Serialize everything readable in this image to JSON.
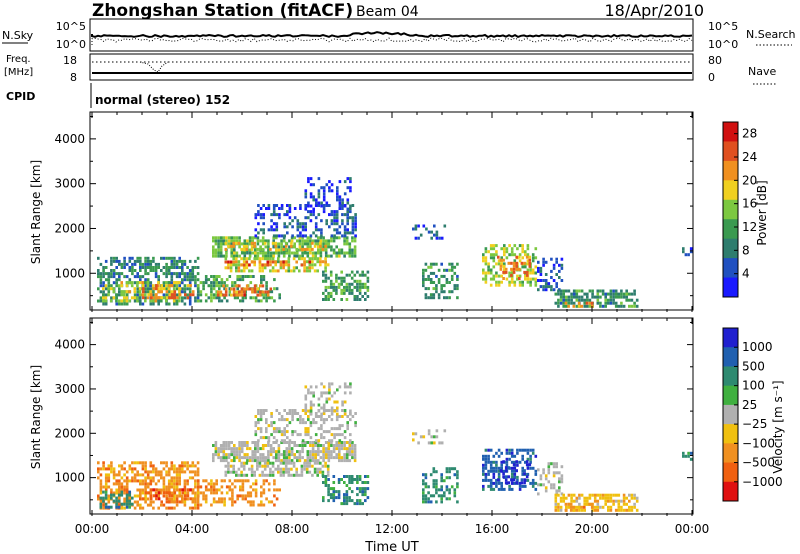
{
  "header": {
    "station": "Zhongshan Station (fitACF)",
    "beam": "Beam 04",
    "date": "18/Apr/2010"
  },
  "summary_panels": {
    "nsky": {
      "label": "N.Sky",
      "ticks_left": [
        "10^5",
        "10^0"
      ],
      "ticks_right": [
        "10^5",
        "10^0"
      ],
      "right_label": "N.Search"
    },
    "freq": {
      "label_line1": "Freq.",
      "label_line2": "[MHz]",
      "ticks_left": [
        "18",
        "8"
      ],
      "ticks_right": [
        "80",
        "0"
      ],
      "right_label": "Nave"
    },
    "cpid": {
      "label": "CPID",
      "value": "normal (stereo) 152"
    }
  },
  "chart_data": [
    {
      "type": "heatmap",
      "panel": "power",
      "ylabel": "Slant Range [km]",
      "yticks": [
        1000,
        2000,
        3000,
        4000
      ],
      "ylim": [
        180,
        4600
      ],
      "xlim_hours": [
        0,
        24
      ],
      "colorbar": {
        "label": "Power [dB]",
        "ticks": [
          "4",
          "8",
          "12",
          "16",
          "20",
          "24",
          "28"
        ],
        "range": [
          0,
          30
        ],
        "colors": [
          "#1a1aff",
          "#2050c0",
          "#2e7d6e",
          "#3a9a50",
          "#7cc840",
          "#f0d020",
          "#f09020",
          "#e05020",
          "#d01010"
        ]
      },
      "regions": [
        {
          "t0": 0.2,
          "t1": 4.2,
          "r0": 280,
          "r1": 1350,
          "p": 9,
          "density": 0.55
        },
        {
          "t0": 0.4,
          "t1": 3.5,
          "r0": 350,
          "r1": 800,
          "p": 17,
          "density": 0.5
        },
        {
          "t0": 2.0,
          "t1": 4.0,
          "r0": 420,
          "r1": 700,
          "p": 22,
          "density": 0.4
        },
        {
          "t0": 4.2,
          "t1": 7.5,
          "r0": 350,
          "r1": 900,
          "p": 12,
          "density": 0.45
        },
        {
          "t0": 5.0,
          "t1": 7.2,
          "r0": 480,
          "r1": 720,
          "p": 23,
          "density": 0.5
        },
        {
          "t0": 4.8,
          "t1": 10.5,
          "r0": 1350,
          "r1": 1800,
          "p": 13,
          "density": 0.75
        },
        {
          "t0": 5.3,
          "t1": 9.5,
          "r0": 1500,
          "r1": 1700,
          "p": 19,
          "density": 0.45
        },
        {
          "t0": 5.3,
          "t1": 9.5,
          "r0": 1020,
          "r1": 1300,
          "p": 17,
          "density": 0.55
        },
        {
          "t0": 5.3,
          "t1": 9.5,
          "r0": 1150,
          "r1": 1250,
          "p": 24,
          "density": 0.35
        },
        {
          "t0": 6.5,
          "t1": 10.5,
          "r0": 1800,
          "r1": 2500,
          "p": 5,
          "density": 0.4
        },
        {
          "t0": 8.5,
          "t1": 10.3,
          "r0": 2400,
          "r1": 3100,
          "p": 4,
          "density": 0.3
        },
        {
          "t0": 9.2,
          "t1": 11.0,
          "r0": 380,
          "r1": 1000,
          "p": 11,
          "density": 0.5
        },
        {
          "t0": 13.2,
          "t1": 14.6,
          "r0": 420,
          "r1": 1200,
          "p": 10,
          "density": 0.45
        },
        {
          "t0": 12.8,
          "t1": 14.2,
          "r0": 1750,
          "r1": 2050,
          "p": 6,
          "density": 0.25
        },
        {
          "t0": 15.6,
          "t1": 17.8,
          "r0": 700,
          "r1": 1600,
          "p": 16,
          "density": 0.5
        },
        {
          "t0": 16.2,
          "t1": 17.5,
          "r0": 850,
          "r1": 1350,
          "p": 23,
          "density": 0.35
        },
        {
          "t0": 17.8,
          "t1": 18.8,
          "r0": 600,
          "r1": 1300,
          "p": 5,
          "density": 0.35
        },
        {
          "t0": 18.5,
          "t1": 21.8,
          "r0": 230,
          "r1": 600,
          "p": 10,
          "density": 0.6
        },
        {
          "t0": 18.8,
          "t1": 20.0,
          "r0": 230,
          "r1": 420,
          "p": 22,
          "density": 0.4
        },
        {
          "t0": 23.6,
          "t1": 24.0,
          "r0": 1380,
          "r1": 1560,
          "p": 6,
          "density": 0.6
        }
      ]
    },
    {
      "type": "heatmap",
      "panel": "velocity",
      "ylabel": "Slant Range [km]",
      "xlabel": "Time UT",
      "yticks": [
        1000,
        2000,
        3000,
        4000
      ],
      "ylim": [
        180,
        4600
      ],
      "xlim_hours": [
        0,
        24
      ],
      "xticklabels": [
        "00:00",
        "04:00",
        "08:00",
        "12:00",
        "16:00",
        "20:00",
        "00:00"
      ],
      "colorbar": {
        "label": "Velocity [m s⁻¹]",
        "ticks": [
          "1000",
          "500",
          "100",
          "25",
          "−25",
          "−100",
          "−500",
          "−1000"
        ],
        "colors": [
          "#2020d0",
          "#2060b0",
          "#2e8a70",
          "#40b040",
          "#b0b0b0",
          "#f0c010",
          "#f09020",
          "#f06010",
          "#e01010"
        ]
      },
      "regions": [
        {
          "t0": 0.2,
          "t1": 4.2,
          "r0": 280,
          "r1": 1350,
          "v": 6,
          "density": 0.55
        },
        {
          "t0": 0.3,
          "t1": 1.6,
          "r0": 300,
          "r1": 700,
          "v": 2,
          "density": 0.45
        },
        {
          "t0": 2.0,
          "t1": 4.0,
          "r0": 420,
          "r1": 700,
          "v": 7,
          "density": 0.4
        },
        {
          "t0": 4.2,
          "t1": 7.5,
          "r0": 350,
          "r1": 900,
          "v": 6,
          "density": 0.45
        },
        {
          "t0": 4.8,
          "t1": 10.5,
          "r0": 1350,
          "r1": 1800,
          "v": 4,
          "density": 0.75
        },
        {
          "t0": 5.3,
          "t1": 9.5,
          "r0": 1020,
          "r1": 1300,
          "v": 4,
          "density": 0.6
        },
        {
          "t0": 6.5,
          "t1": 10.5,
          "r0": 1800,
          "r1": 2500,
          "v": 4,
          "density": 0.4
        },
        {
          "t0": 8.5,
          "t1": 10.3,
          "r0": 2400,
          "r1": 3100,
          "v": 4,
          "density": 0.3
        },
        {
          "t0": 9.2,
          "t1": 11.0,
          "r0": 380,
          "r1": 1000,
          "v": 2,
          "density": 0.5
        },
        {
          "t0": 13.2,
          "t1": 14.6,
          "r0": 420,
          "r1": 1200,
          "v": 2,
          "density": 0.45
        },
        {
          "t0": 12.8,
          "t1": 14.2,
          "r0": 1750,
          "r1": 2050,
          "v": 4,
          "density": 0.25
        },
        {
          "t0": 15.6,
          "t1": 17.8,
          "r0": 700,
          "r1": 1600,
          "v": 1,
          "density": 0.5
        },
        {
          "t0": 16.2,
          "t1": 17.5,
          "r0": 850,
          "r1": 1350,
          "v": 0,
          "density": 0.3
        },
        {
          "t0": 17.8,
          "t1": 18.8,
          "r0": 600,
          "r1": 1300,
          "v": 4,
          "density": 0.35
        },
        {
          "t0": 18.5,
          "t1": 21.8,
          "r0": 230,
          "r1": 600,
          "v": 5,
          "density": 0.6
        },
        {
          "t0": 18.8,
          "t1": 20.0,
          "r0": 230,
          "r1": 420,
          "v": 6,
          "density": 0.4
        },
        {
          "t0": 23.6,
          "t1": 24.0,
          "r0": 1380,
          "r1": 1560,
          "v": 2,
          "density": 0.6
        }
      ]
    }
  ]
}
